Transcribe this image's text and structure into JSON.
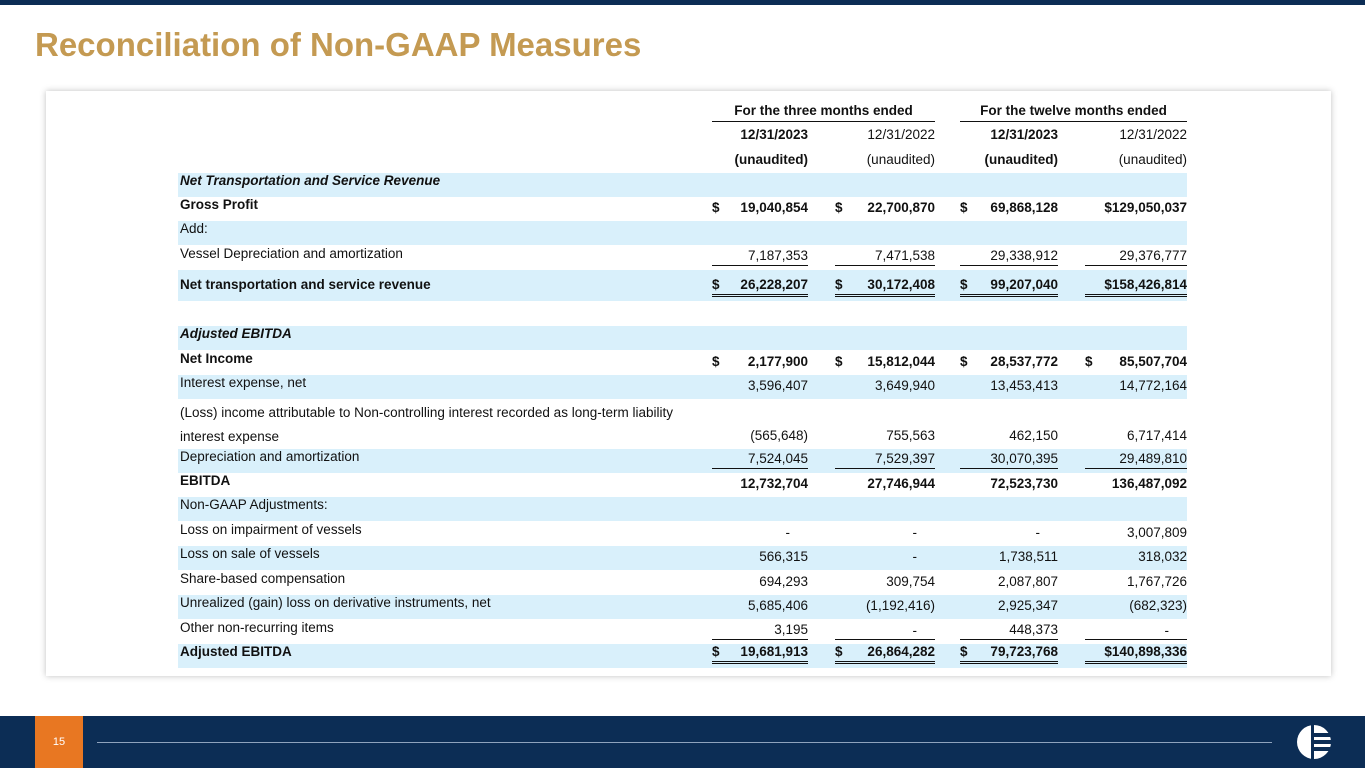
{
  "header": {
    "title": "Reconciliation of Non-GAAP Measures"
  },
  "footer": {
    "page": "15"
  },
  "table": {
    "group_headers": [
      "For the three months ended",
      "For the twelve months ended"
    ],
    "dates": [
      "12/31/2023",
      "12/31/2022",
      "12/31/2023",
      "12/31/2022"
    ],
    "audit": [
      "(unaudited)",
      "(unaudited)",
      "(unaudited)",
      "(unaudited)"
    ],
    "rows": [
      {
        "label": "Net Transportation and Service Revenue"
      },
      {
        "label": "Gross Profit",
        "values": [
          "$ 19,040,854",
          "$ 22,700,870",
          "$ 69,868,128",
          "$129,050,037"
        ]
      },
      {
        "label": "Add:"
      },
      {
        "label": "Vessel Depreciation and amortization",
        "values": [
          "7,187,353",
          "7,471,538",
          "29,338,912",
          "29,376,777"
        ]
      },
      {
        "label": "Net transportation and service revenue",
        "values": [
          "$ 26,228,207",
          "$ 30,172,408",
          "$ 99,207,040",
          "$158,426,814"
        ]
      },
      {
        "label": "Adjusted EBITDA"
      },
      {
        "label": "Net Income",
        "values": [
          "$ 2,177,900",
          "$ 15,812,044",
          "$ 28,537,772",
          "$ 85,507,704"
        ]
      },
      {
        "label": "Interest expense, net",
        "values": [
          "3,596,407",
          "3,649,940",
          "13,453,413",
          "14,772,164"
        ]
      },
      {
        "label": "(Loss) income attributable to Non-controlling interest recorded as long-term liability interest expense",
        "values": [
          "(565,648)",
          "755,563",
          "462,150",
          "6,717,414"
        ]
      },
      {
        "label": "Depreciation and amortization",
        "values": [
          "7,524,045",
          "7,529,397",
          "30,070,395",
          "29,489,810"
        ]
      },
      {
        "label": "EBITDA",
        "values": [
          "12,732,704",
          "27,746,944",
          "72,523,730",
          "136,487,092"
        ]
      },
      {
        "label": "Non-GAAP Adjustments:"
      },
      {
        "label": "Loss on impairment of vessels",
        "values": [
          "-",
          "-",
          "-",
          "3,007,809"
        ]
      },
      {
        "label": "Loss on sale of vessels",
        "values": [
          "566,315",
          "-",
          "1,738,511",
          "318,032"
        ]
      },
      {
        "label": "Share-based compensation",
        "values": [
          "694,293",
          "309,754",
          "2,087,807",
          "1,767,726"
        ]
      },
      {
        "label": "Unrealized (gain) loss on derivative instruments, net",
        "values": [
          "5,685,406",
          "(1,192,416)",
          "2,925,347",
          "(682,323)"
        ]
      },
      {
        "label": "Other non-recurring items",
        "values": [
          "3,195",
          "-",
          "448,373",
          "-"
        ]
      },
      {
        "label": "Adjusted EBITDA",
        "values": [
          "$ 19,681,913",
          "$ 26,864,282",
          "$ 79,723,768",
          "$140,898,336"
        ]
      }
    ]
  }
}
